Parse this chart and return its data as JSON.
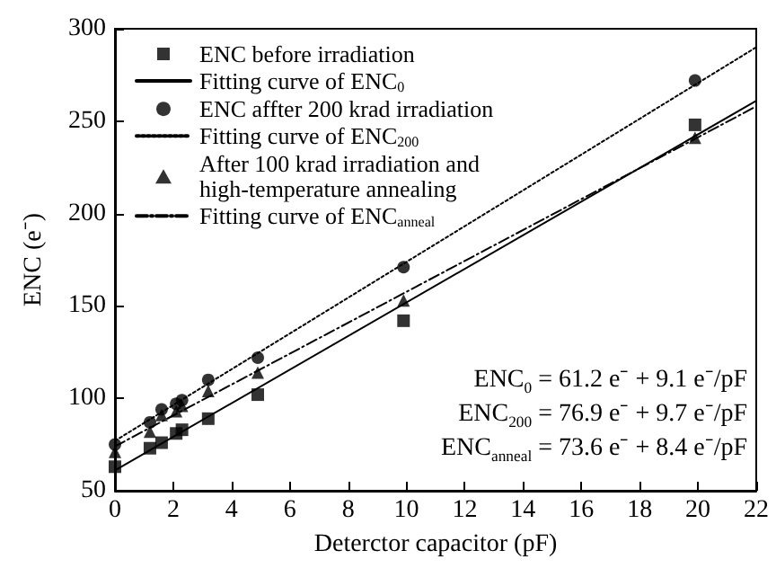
{
  "chart_data": {
    "type": "scatter",
    "xlabel": "Deterctor capacitor (pF)",
    "ylabel": "ENC (e⁻)",
    "xlim": [
      0,
      22
    ],
    "xticks": [
      0,
      2,
      4,
      6,
      8,
      10,
      12,
      14,
      16,
      18,
      20,
      22
    ],
    "ylim": [
      50,
      300
    ],
    "yticks": [
      50,
      100,
      150,
      200,
      250,
      300
    ],
    "grid": false,
    "legend": "top left",
    "series": [
      {
        "name": "ENC before irradiation",
        "marker": "square",
        "color": "#000000",
        "x": [
          0,
          1.2,
          1.6,
          2.1,
          2.3,
          3.2,
          4.9,
          9.9,
          19.9
        ],
        "values": [
          63,
          73,
          76,
          81,
          83,
          89,
          102,
          142,
          248
        ]
      },
      {
        "name": "Fitting curve of ENC$_{0}$",
        "type": "line",
        "marker": "none",
        "line_style": "solid",
        "color": "#000000",
        "x": [
          0,
          22
        ],
        "values": [
          61,
          261
        ]
      },
      {
        "name": "ENC affter 200 krad irradiation",
        "marker": "circle",
        "color": "#000000",
        "x": [
          0,
          1.2,
          1.6,
          2.1,
          2.3,
          3.2,
          4.9,
          9.9,
          19.9
        ],
        "values": [
          75,
          87,
          94,
          97,
          99,
          110,
          122,
          171,
          272
        ]
      },
      {
        "name": "Fitting curve of ENC$_{200}$",
        "type": "line",
        "marker": "none",
        "line_style": "dotted",
        "color": "#000000",
        "x": [
          0,
          22
        ],
        "values": [
          77,
          290
        ]
      },
      {
        "name": "After 100 krad irradiation and\nhigh-temperature annealing",
        "marker": "triangle",
        "color": "#000000",
        "x": [
          0,
          1.2,
          1.6,
          2.1,
          2.3,
          3.2,
          4.9,
          9.9,
          19.9
        ],
        "values": [
          71,
          82,
          91,
          93,
          96,
          104,
          114,
          153,
          241
        ]
      },
      {
        "name": "Fitting curve of ENC$_{anneal}$",
        "type": "line",
        "marker": "none",
        "line_style": "dashed",
        "color": "#000000",
        "x": [
          0,
          22
        ],
        "values": [
          74,
          258
        ]
      }
    ],
    "annotations": [
      "ENC$_{0}$ = 61.2 e⁻ + 9.1 e⁻/pF",
      "ENC$_{200}$ = 76.9 e⁻ + 9.7 e⁻/pF",
      "ENC$_{anneal}$ = 73.6 e⁻ + 8.4 e⁻/pF"
    ]
  }
}
